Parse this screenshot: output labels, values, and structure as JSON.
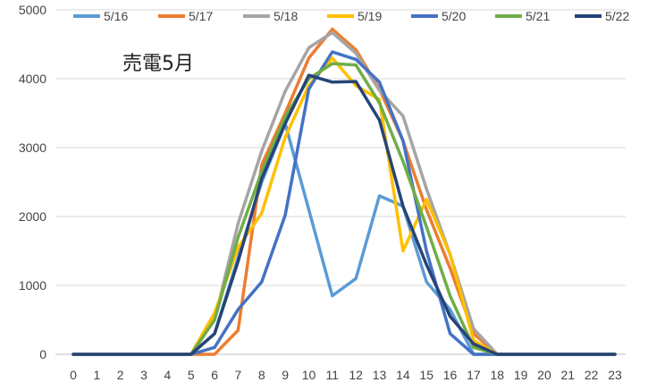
{
  "chart_data": {
    "type": "line",
    "title": "売電5月",
    "xlabel": "",
    "ylabel": "",
    "x": [
      0,
      1,
      2,
      3,
      4,
      5,
      6,
      7,
      8,
      9,
      10,
      11,
      12,
      13,
      14,
      15,
      16,
      17,
      18,
      19,
      20,
      21,
      22,
      23
    ],
    "ylim": [
      0,
      5000
    ],
    "yticks": [
      0,
      1000,
      2000,
      3000,
      4000,
      5000
    ],
    "grid": true,
    "legend_position": "top",
    "series": [
      {
        "name": "5/16",
        "color": "#5b9bd5",
        "values": [
          0,
          0,
          0,
          0,
          0,
          0,
          300,
          1400,
          2500,
          3350,
          2100,
          850,
          1100,
          2300,
          2150,
          1050,
          650,
          0,
          0,
          0,
          0,
          0,
          0,
          0
        ]
      },
      {
        "name": "5/17",
        "color": "#ed7d31",
        "values": [
          0,
          0,
          0,
          0,
          0,
          0,
          0,
          350,
          2750,
          3500,
          4300,
          4720,
          4420,
          3850,
          3100,
          2100,
          1250,
          300,
          0,
          0,
          0,
          0,
          0,
          0
        ]
      },
      {
        "name": "5/18",
        "color": "#a5a5a5",
        "values": [
          0,
          0,
          0,
          0,
          0,
          0,
          500,
          1900,
          2950,
          3820,
          4450,
          4670,
          4370,
          3830,
          3460,
          2400,
          1450,
          370,
          0,
          0,
          0,
          0,
          0,
          0
        ]
      },
      {
        "name": "5/19",
        "color": "#ffc000",
        "values": [
          0,
          0,
          0,
          0,
          0,
          0,
          600,
          1550,
          2050,
          3150,
          3900,
          4300,
          3900,
          3700,
          1500,
          2250,
          1450,
          200,
          0,
          0,
          0,
          0,
          0,
          0
        ]
      },
      {
        "name": "5/20",
        "color": "#4472c4",
        "values": [
          0,
          0,
          0,
          0,
          0,
          0,
          100,
          650,
          1050,
          2020,
          3850,
          4390,
          4280,
          3950,
          3100,
          1500,
          300,
          0,
          0,
          0,
          0,
          0,
          0,
          0
        ]
      },
      {
        "name": "5/21",
        "color": "#70ad47",
        "values": [
          0,
          0,
          0,
          0,
          0,
          0,
          500,
          1700,
          2650,
          3450,
          4000,
          4220,
          4200,
          3650,
          2800,
          1850,
          850,
          100,
          0,
          0,
          0,
          0,
          0,
          0
        ]
      },
      {
        "name": "5/22",
        "color": "#264478",
        "values": [
          0,
          0,
          0,
          0,
          0,
          0,
          300,
          1350,
          2550,
          3350,
          4050,
          3950,
          3960,
          3400,
          2150,
          1300,
          550,
          150,
          0,
          0,
          0,
          0,
          0,
          0
        ]
      }
    ]
  }
}
